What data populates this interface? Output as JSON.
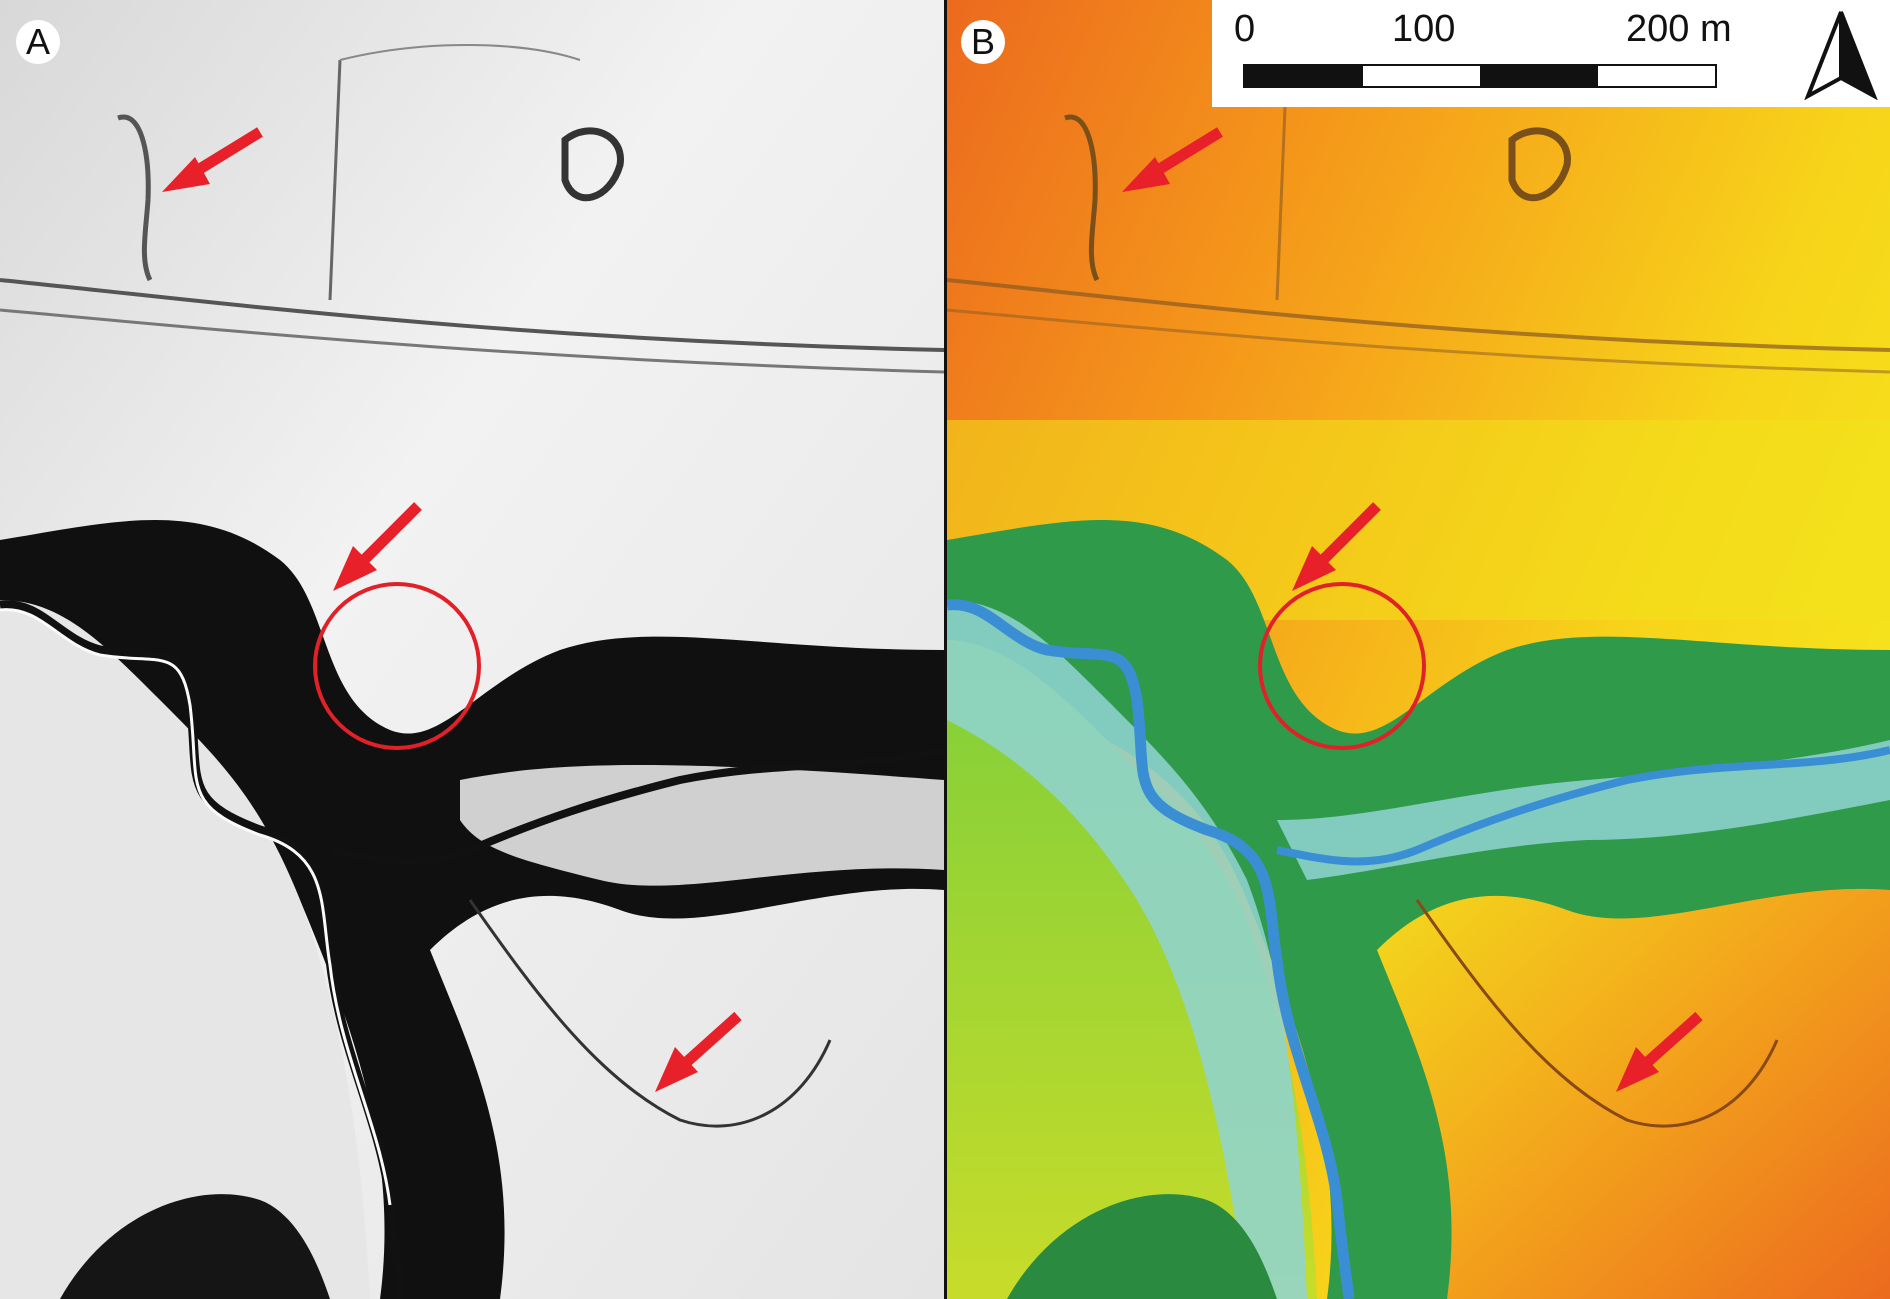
{
  "panels": [
    {
      "label": "A",
      "style": "grayscale hillshade"
    },
    {
      "label": "B",
      "style": "colored elevation model (blue low → green → yellow → orange/red high)"
    }
  ],
  "scale_bar": {
    "labels": [
      "0",
      "100",
      "200 m"
    ],
    "segment_colors": [
      "#111111",
      "#ffffff",
      "#111111",
      "#ffffff"
    ]
  },
  "north_arrow": {
    "icon": "north-arrow-icon"
  },
  "annotations": {
    "arrow_color": "#e8202a",
    "circle_color": "#e02128",
    "arrow_count": 3,
    "circle_count": 1
  },
  "elevation_colors": {
    "river": "#3a8fd4",
    "floodplain": "#8fd4d4",
    "low_valley": "#2f9a4a",
    "mid": "#e3e61a",
    "high": "#f28a1a",
    "peak": "#e85a20"
  }
}
